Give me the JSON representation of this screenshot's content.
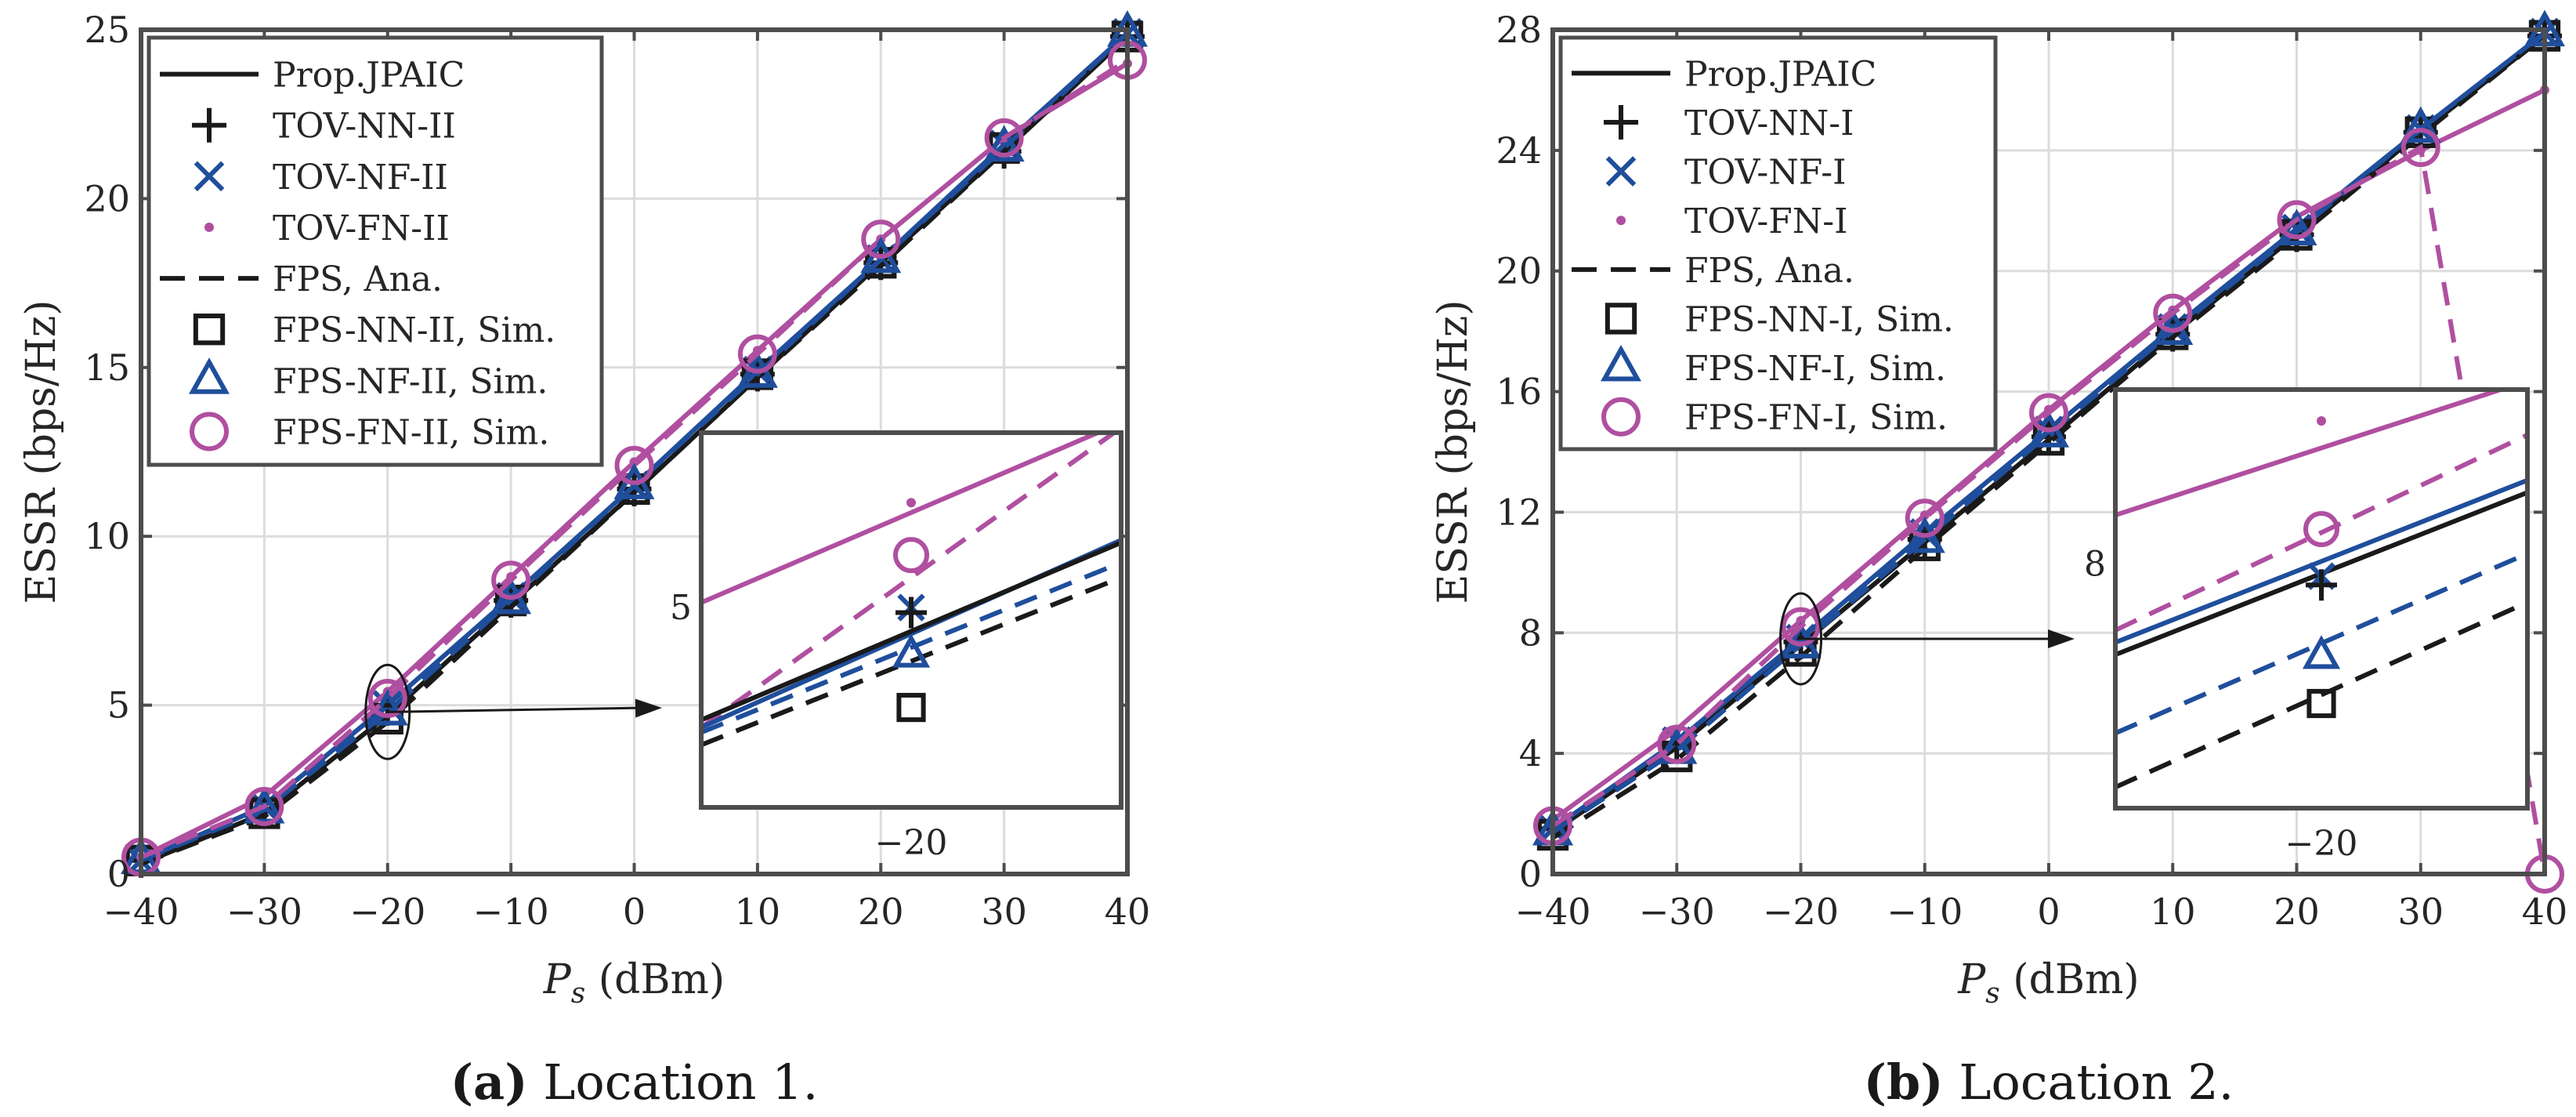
{
  "chart_data": [
    {
      "type": "line",
      "caption_letter": "(a)",
      "caption_text": " Location 1.",
      "xlabel_italic": "P",
      "xlabel_sub": "s",
      "xlabel_rest": " (dBm)",
      "ylabel": "ESSR (bps/Hz)",
      "xlim": [
        -40,
        40
      ],
      "ylim": [
        0,
        25
      ],
      "xticks": [
        -40,
        -30,
        -20,
        -10,
        0,
        10,
        20,
        30,
        40
      ],
      "xtick_labels": [
        "−40",
        "−30",
        "−20",
        "−10",
        "0",
        "10",
        "20",
        "30",
        "40"
      ],
      "yticks": [
        0,
        5,
        10,
        15,
        20,
        25
      ],
      "ytick_labels": [
        "0",
        "5",
        "10",
        "15",
        "20",
        "25"
      ],
      "grid": true,
      "x": [
        -40,
        -30,
        -20,
        -10,
        0,
        10,
        20,
        30,
        40
      ],
      "series": [
        {
          "name": "Prop.JPAIC",
          "color": "#1a1a1a",
          "dash": "solid",
          "marker": "none",
          "values": [
            0.3,
            1.8,
            4.7,
            8.0,
            11.3,
            14.7,
            18.1,
            21.4,
            24.8
          ]
        },
        {
          "name": "TOV-NN-II",
          "color": "#1a1a1a",
          "dash": "none",
          "marker": "plus",
          "values": [
            0.4,
            1.9,
            4.9,
            8.1,
            11.4,
            14.8,
            18.1,
            21.4,
            24.8
          ]
        },
        {
          "name": "TOV-NF-II",
          "color": "#1f4e9c",
          "dash": "solid",
          "marker": "x",
          "values": [
            0.4,
            2.0,
            5.0,
            8.2,
            11.5,
            14.9,
            18.2,
            21.6,
            24.9
          ]
        },
        {
          "name": "TOV-FN-II",
          "color": "#b04fa0",
          "dash": "solid",
          "marker": "dot",
          "values": [
            0.5,
            2.3,
            5.4,
            8.8,
            12.2,
            15.5,
            18.8,
            21.8,
            24.0
          ]
        },
        {
          "name": "FPS, Ana.",
          "color": "#1a1a1a",
          "dash": "dashed",
          "marker": "none",
          "values": [
            0.3,
            1.7,
            4.5,
            7.9,
            11.3,
            14.7,
            18.0,
            21.4,
            24.8
          ]
        },
        {
          "name": "FPS-NN-II, Sim.",
          "color": "#1a1a1a",
          "dash": "none",
          "marker": "square",
          "values": [
            0.4,
            1.8,
            4.6,
            8.1,
            11.4,
            14.8,
            18.1,
            21.5,
            24.8
          ]
        },
        {
          "name": "FPS-NF-II, Sim.",
          "color": "#1f4e9c",
          "dash": "dashed",
          "marker": "triangle",
          "values": [
            0.4,
            1.9,
            4.8,
            8.1,
            11.5,
            14.8,
            18.2,
            21.5,
            24.9
          ]
        },
        {
          "name": "FPS-FN-II, Sim.",
          "color": "#b04fa0",
          "dash": "dashed",
          "marker": "circle",
          "values": [
            0.5,
            2.0,
            5.2,
            8.7,
            12.1,
            15.4,
            18.8,
            21.8,
            24.1
          ]
        }
      ],
      "inset": {
        "xlim": [
          -20.8,
          -19.2
        ],
        "ylim": [
          4.2,
          5.7
        ],
        "xtick": -20,
        "xtick_label": "−20",
        "ytick": 5,
        "ytick_label": "5",
        "lines": [
          {
            "color": "#b04fa0",
            "dash": "solid",
            "y0": 5.02,
            "y1": 5.74
          },
          {
            "color": "#b04fa0",
            "dash": "dashed",
            "y0": 4.52,
            "y1": 5.72
          },
          {
            "color": "#1f4e9c",
            "dash": "solid",
            "y0": 4.52,
            "y1": 5.27
          },
          {
            "color": "#1a1a1a",
            "dash": "solid",
            "y0": 4.55,
            "y1": 5.26
          },
          {
            "color": "#1f4e9c",
            "dash": "dashed",
            "y0": 4.5,
            "y1": 5.18
          },
          {
            "color": "#1a1a1a",
            "dash": "dashed",
            "y0": 4.45,
            "y1": 5.12
          }
        ],
        "points": [
          {
            "marker": "dot",
            "color": "#b04fa0",
            "x": -20,
            "y": 5.42
          },
          {
            "marker": "circle",
            "color": "#b04fa0",
            "x": -20,
            "y": 5.21
          },
          {
            "marker": "x",
            "color": "#1f4e9c",
            "x": -20,
            "y": 5.0
          },
          {
            "marker": "plus",
            "color": "#1a1a1a",
            "x": -20,
            "y": 4.98
          },
          {
            "marker": "triangle",
            "color": "#1f4e9c",
            "x": -20,
            "y": 4.81
          },
          {
            "marker": "square",
            "color": "#1a1a1a",
            "x": -20,
            "y": 4.6
          }
        ]
      },
      "zoom_ellipse_center": {
        "x": -20,
        "y": 4.8
      }
    },
    {
      "type": "line",
      "caption_letter": "(b)",
      "caption_text": " Location 2.",
      "xlabel_italic": "P",
      "xlabel_sub": "s",
      "xlabel_rest": " (dBm)",
      "ylabel": "ESSR (bps/Hz)",
      "xlim": [
        -40,
        40
      ],
      "ylim": [
        0,
        28
      ],
      "xticks": [
        -40,
        -30,
        -20,
        -10,
        0,
        10,
        20,
        30,
        40
      ],
      "xtick_labels": [
        "−40",
        "−30",
        "−20",
        "−10",
        "0",
        "10",
        "20",
        "30",
        "40"
      ],
      "yticks": [
        0,
        4,
        8,
        12,
        16,
        20,
        24,
        28
      ],
      "ytick_labels": [
        "0",
        "4",
        "8",
        "12",
        "16",
        "20",
        "24",
        "28"
      ],
      "grid": true,
      "x": [
        -40,
        -30,
        -20,
        -10,
        0,
        10,
        20,
        30,
        40
      ],
      "series": [
        {
          "name": "Prop.JPAIC",
          "color": "#1a1a1a",
          "dash": "solid",
          "marker": "none",
          "values": [
            1.4,
            4.2,
            7.6,
            11.0,
            14.4,
            17.9,
            21.2,
            24.6,
            27.8
          ]
        },
        {
          "name": "TOV-NN-I",
          "color": "#1a1a1a",
          "dash": "none",
          "marker": "plus",
          "values": [
            1.5,
            4.3,
            7.7,
            11.1,
            14.5,
            17.9,
            21.2,
            24.6,
            27.8
          ]
        },
        {
          "name": "TOV-NF-I",
          "color": "#1f4e9c",
          "dash": "solid",
          "marker": "x",
          "values": [
            1.5,
            4.4,
            7.8,
            11.3,
            14.7,
            18.1,
            21.4,
            24.7,
            27.9
          ]
        },
        {
          "name": "TOV-FN-I",
          "color": "#b04fa0",
          "dash": "solid",
          "marker": "dot",
          "values": [
            1.8,
            4.8,
            8.4,
            11.9,
            15.4,
            18.7,
            21.8,
            24.0,
            26.0
          ]
        },
        {
          "name": "FPS, Ana.",
          "color": "#1a1a1a",
          "dash": "dashed",
          "marker": "none",
          "values": [
            1.2,
            3.8,
            7.2,
            10.8,
            14.3,
            17.8,
            21.1,
            24.5,
            27.8
          ]
        },
        {
          "name": "FPS-NN-I, Sim.",
          "color": "#1a1a1a",
          "dash": "none",
          "marker": "square",
          "values": [
            1.3,
            3.9,
            7.4,
            10.9,
            14.4,
            17.9,
            21.2,
            24.6,
            27.8
          ]
        },
        {
          "name": "FPS-NF-I, Sim.",
          "color": "#1f4e9c",
          "dash": "dashed",
          "marker": "triangle",
          "values": [
            1.4,
            4.1,
            7.6,
            11.1,
            14.6,
            18.0,
            21.3,
            24.7,
            27.9
          ]
        },
        {
          "name": "FPS-FN-I, Sim.",
          "color": "#b04fa0",
          "dash": "dashed",
          "marker": "circle",
          "values": [
            1.6,
            4.3,
            8.2,
            11.8,
            15.3,
            18.6,
            21.7,
            24.1,
            0.0
          ]
        }
      ],
      "inset": {
        "xlim": [
          -20.8,
          -19.2
        ],
        "ylim": [
          6.6,
          9.0
        ],
        "xtick": -20,
        "xtick_label": "−20",
        "ytick": 8,
        "ytick_label": "8",
        "lines": [
          {
            "color": "#b04fa0",
            "dash": "solid",
            "y0": 8.28,
            "y1": 9.05
          },
          {
            "color": "#b04fa0",
            "dash": "dashed",
            "y0": 7.62,
            "y1": 8.74
          },
          {
            "color": "#1f4e9c",
            "dash": "solid",
            "y0": 7.55,
            "y1": 8.48
          },
          {
            "color": "#1a1a1a",
            "dash": "solid",
            "y0": 7.48,
            "y1": 8.41
          },
          {
            "color": "#1f4e9c",
            "dash": "dashed",
            "y0": 7.03,
            "y1": 8.06
          },
          {
            "color": "#1a1a1a",
            "dash": "dashed",
            "y0": 6.72,
            "y1": 7.78
          }
        ],
        "points": [
          {
            "marker": "dot",
            "color": "#b04fa0",
            "x": -20,
            "y": 8.82
          },
          {
            "marker": "circle",
            "color": "#b04fa0",
            "x": -20,
            "y": 8.2
          },
          {
            "marker": "x",
            "color": "#1f4e9c",
            "x": -20,
            "y": 7.93
          },
          {
            "marker": "plus",
            "color": "#1a1a1a",
            "x": -20,
            "y": 7.88
          },
          {
            "marker": "triangle",
            "color": "#1f4e9c",
            "x": -20,
            "y": 7.47
          },
          {
            "marker": "square",
            "color": "#1a1a1a",
            "x": -20,
            "y": 7.2
          }
        ]
      },
      "zoom_ellipse_center": {
        "x": -20,
        "y": 7.8
      }
    }
  ]
}
